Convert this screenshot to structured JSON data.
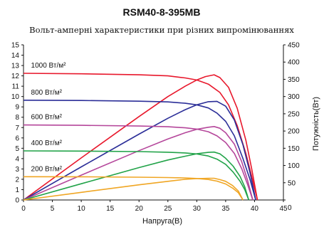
{
  "chart_data": {
    "type": "line",
    "title": "RSM40-8-395MB",
    "subtitle": "Вольт-амперні характеристики при різних випромінюваннях",
    "xlabel": "Напруга(В)",
    "ylabel_right": "Потужність(Вт)",
    "xlim": [
      0,
      45
    ],
    "ylim_left": [
      0,
      15
    ],
    "ylim_right": [
      0,
      450
    ],
    "x_ticks": [
      "0",
      "5",
      "10",
      "15",
      "20",
      "25",
      "30",
      "35",
      "40",
      "45"
    ],
    "y_left_ticks": [
      "0",
      "1",
      "2",
      "3",
      "4",
      "5",
      "6",
      "7",
      "8",
      "9",
      "10",
      "11",
      "12",
      "13",
      "14",
      "15"
    ],
    "y_right_ticks": [
      "0",
      "50",
      "100",
      "150",
      "200",
      "250",
      "300",
      "350",
      "400",
      "450"
    ],
    "series": [
      {
        "name": "1000 Вт/м²",
        "color": "#e8182c",
        "iv": [
          [
            0,
            12.25
          ],
          [
            10,
            12.2
          ],
          [
            20,
            12.1
          ],
          [
            25,
            12.0
          ],
          [
            28,
            11.8
          ],
          [
            30,
            11.6
          ],
          [
            32,
            11.2
          ],
          [
            34,
            10.4
          ],
          [
            35.5,
            9.2
          ],
          [
            37,
            7.2
          ],
          [
            38.5,
            4.5
          ],
          [
            39.5,
            2.3
          ],
          [
            40.5,
            0
          ]
        ],
        "pv": [
          [
            0,
            0
          ],
          [
            10,
            122
          ],
          [
            20,
            242
          ],
          [
            25,
            300
          ],
          [
            28,
            330
          ],
          [
            30,
            348
          ],
          [
            31.5,
            358
          ],
          [
            33,
            363
          ],
          [
            34,
            355
          ],
          [
            35.5,
            327
          ],
          [
            37,
            266
          ],
          [
            38.5,
            173
          ],
          [
            39.5,
            91
          ],
          [
            40.5,
            0
          ]
        ]
      },
      {
        "name": "800 Вт/м²",
        "color": "#2b2e98",
        "iv": [
          [
            0,
            9.65
          ],
          [
            10,
            9.62
          ],
          [
            20,
            9.55
          ],
          [
            25,
            9.48
          ],
          [
            28,
            9.35
          ],
          [
            30,
            9.2
          ],
          [
            32,
            8.9
          ],
          [
            33.5,
            8.4
          ],
          [
            35,
            7.6
          ],
          [
            36.5,
            6.2
          ],
          [
            38,
            4.0
          ],
          [
            39.2,
            2.0
          ],
          [
            40.2,
            0
          ]
        ],
        "pv": [
          [
            0,
            0
          ],
          [
            10,
            96
          ],
          [
            20,
            191
          ],
          [
            25,
            237
          ],
          [
            28,
            262
          ],
          [
            30,
            276
          ],
          [
            32,
            285
          ],
          [
            33.5,
            286
          ],
          [
            35,
            272
          ],
          [
            36.5,
            232
          ],
          [
            38,
            160
          ],
          [
            39.2,
            80
          ],
          [
            40.2,
            0
          ]
        ]
      },
      {
        "name": "600 Вт/м²",
        "color": "#b5479b",
        "iv": [
          [
            0,
            7.25
          ],
          [
            10,
            7.22
          ],
          [
            20,
            7.15
          ],
          [
            25,
            7.08
          ],
          [
            28,
            6.98
          ],
          [
            30,
            6.85
          ],
          [
            32,
            6.6
          ],
          [
            33.5,
            6.2
          ],
          [
            35,
            5.55
          ],
          [
            36.5,
            4.5
          ],
          [
            37.8,
            3.0
          ],
          [
            38.8,
            1.5
          ],
          [
            39.7,
            0
          ]
        ],
        "pv": [
          [
            0,
            0
          ],
          [
            10,
            72
          ],
          [
            20,
            143
          ],
          [
            25,
            177
          ],
          [
            28,
            195
          ],
          [
            30,
            205
          ],
          [
            32,
            211
          ],
          [
            33,
            213
          ],
          [
            34,
            208
          ],
          [
            35,
            195
          ],
          [
            36.5,
            162
          ],
          [
            37.8,
            110
          ],
          [
            38.8,
            57
          ],
          [
            39.7,
            0
          ]
        ]
      },
      {
        "name": "400 Вт/м²",
        "color": "#22a349",
        "iv": [
          [
            0,
            4.75
          ],
          [
            10,
            4.73
          ],
          [
            20,
            4.68
          ],
          [
            25,
            4.62
          ],
          [
            28,
            4.55
          ],
          [
            30,
            4.45
          ],
          [
            32,
            4.25
          ],
          [
            33.5,
            3.95
          ],
          [
            35,
            3.45
          ],
          [
            36.3,
            2.7
          ],
          [
            37.5,
            1.8
          ],
          [
            38.3,
            1.0
          ],
          [
            39.0,
            0
          ]
        ],
        "pv": [
          [
            0,
            0
          ],
          [
            10,
            47
          ],
          [
            20,
            94
          ],
          [
            25,
            116
          ],
          [
            28,
            127
          ],
          [
            30,
            134
          ],
          [
            32,
            138
          ],
          [
            33,
            139
          ],
          [
            34,
            134
          ],
          [
            35,
            121
          ],
          [
            36.3,
            98
          ],
          [
            37.5,
            68
          ],
          [
            38.3,
            38
          ],
          [
            39.0,
            0
          ]
        ]
      },
      {
        "name": "200 Вт/м²",
        "color": "#f0a624",
        "iv": [
          [
            0,
            2.25
          ],
          [
            10,
            2.24
          ],
          [
            20,
            2.2
          ],
          [
            25,
            2.17
          ],
          [
            28,
            2.13
          ],
          [
            30,
            2.08
          ],
          [
            32,
            1.98
          ],
          [
            33.5,
            1.82
          ],
          [
            35,
            1.55
          ],
          [
            36.2,
            1.15
          ],
          [
            37.2,
            0.7
          ],
          [
            38,
            0
          ]
        ],
        "pv": [
          [
            0,
            0
          ],
          [
            10,
            22
          ],
          [
            20,
            44
          ],
          [
            25,
            54
          ],
          [
            28,
            60
          ],
          [
            30,
            62
          ],
          [
            32,
            63
          ],
          [
            33,
            63
          ],
          [
            34,
            59
          ],
          [
            35,
            54
          ],
          [
            36.2,
            42
          ],
          [
            37.2,
            26
          ],
          [
            38,
            0
          ]
        ]
      }
    ]
  }
}
